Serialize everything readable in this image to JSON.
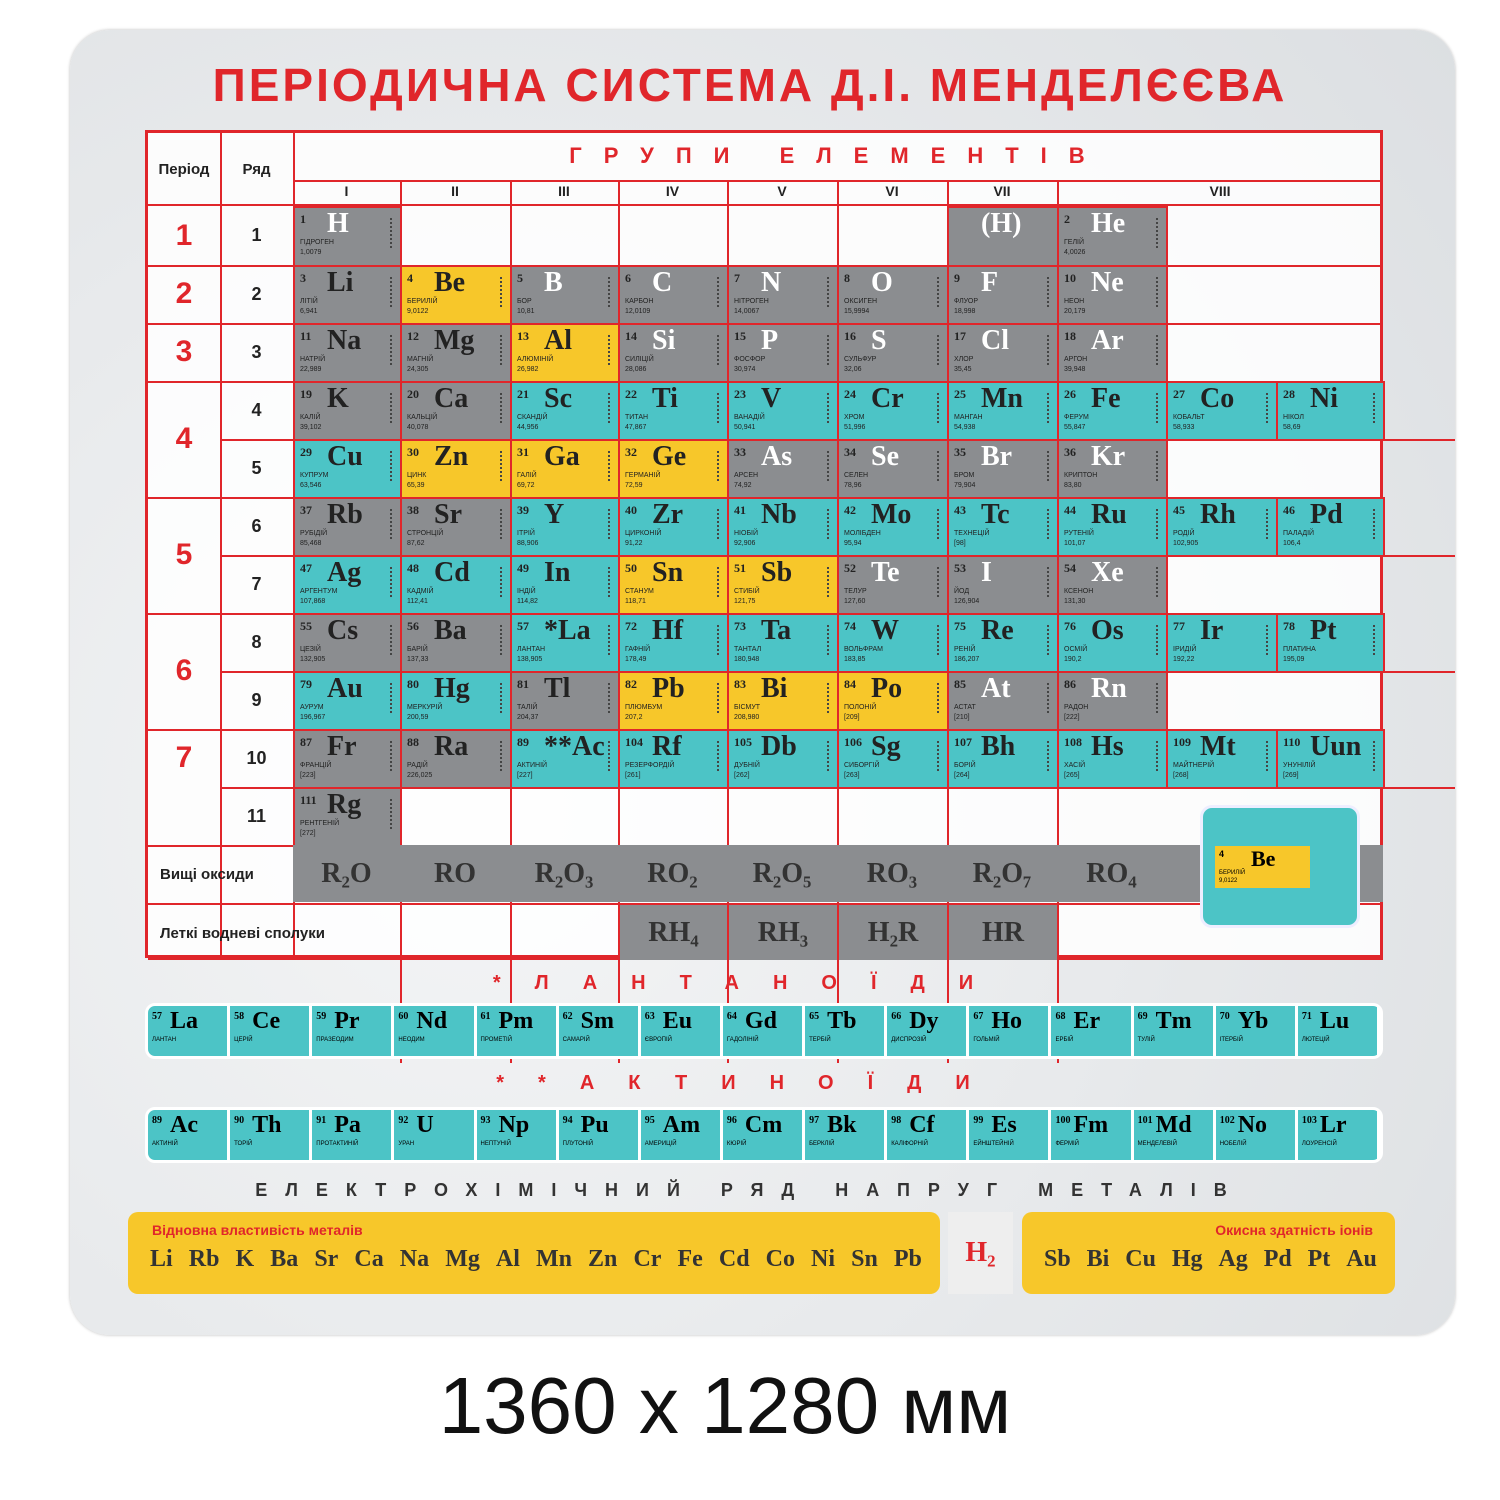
{
  "title": "ПЕРІОДИЧНА  СИСТЕМА  Д.І. МЕНДЕЛЄЄВА",
  "headers": {
    "period": "Період",
    "row": "Ряд",
    "groups_title": "ГРУПИ ЕЛЕМЕНТІВ",
    "groups": [
      "I",
      "II",
      "III",
      "IV",
      "V",
      "VI",
      "VII",
      "VIII"
    ]
  },
  "periods": [
    "1",
    "2",
    "3",
    "4",
    "5",
    "6",
    "7"
  ],
  "rows": [
    "1",
    "2",
    "3",
    "4",
    "5",
    "6",
    "7",
    "8",
    "9",
    "10",
    "11"
  ],
  "colors": {
    "gray": "#8b8d90",
    "yellow": "#f7c72a",
    "teal": "#4cc4c6",
    "red": "#e0262b"
  },
  "elements": [
    [
      {
        "n": "1",
        "s": "H",
        "name": "ГІДРОГЕН",
        "mass": "1,0079",
        "col": 0,
        "c": "gray",
        "light": true
      },
      {
        "n": "",
        "s": "(H)",
        "name": "",
        "mass": "",
        "col": 6,
        "c": "gray",
        "light": true
      },
      {
        "n": "2",
        "s": "He",
        "name": "ГЕЛІЙ",
        "mass": "4,0026",
        "col": 7,
        "c": "gray",
        "light": true
      }
    ],
    [
      {
        "n": "3",
        "s": "Li",
        "name": "ЛІТІЙ",
        "mass": "6,941",
        "col": 0,
        "c": "gray"
      },
      {
        "n": "4",
        "s": "Be",
        "name": "БЕРИЛІЙ",
        "mass": "9,0122",
        "col": 1,
        "c": "yellow"
      },
      {
        "n": "5",
        "s": "B",
        "name": "БОР",
        "mass": "10,81",
        "col": 2,
        "c": "gray",
        "light": true
      },
      {
        "n": "6",
        "s": "C",
        "name": "КАРБОН",
        "mass": "12,0109",
        "col": 3,
        "c": "gray",
        "light": true
      },
      {
        "n": "7",
        "s": "N",
        "name": "НІТРОГЕН",
        "mass": "14,0067",
        "col": 4,
        "c": "gray",
        "light": true
      },
      {
        "n": "8",
        "s": "O",
        "name": "ОКСИГЕН",
        "mass": "15,9994",
        "col": 5,
        "c": "gray",
        "light": true
      },
      {
        "n": "9",
        "s": "F",
        "name": "ФЛУОР",
        "mass": "18,998",
        "col": 6,
        "c": "gray",
        "light": true
      },
      {
        "n": "10",
        "s": "Ne",
        "name": "НЕОН",
        "mass": "20,179",
        "col": 7,
        "c": "gray",
        "light": true
      }
    ],
    [
      {
        "n": "11",
        "s": "Na",
        "name": "НАТРІЙ",
        "mass": "22,989",
        "col": 0,
        "c": "gray"
      },
      {
        "n": "12",
        "s": "Mg",
        "name": "МАГНІЙ",
        "mass": "24,305",
        "col": 1,
        "c": "gray"
      },
      {
        "n": "13",
        "s": "Al",
        "name": "АЛЮМІНІЙ",
        "mass": "26,982",
        "col": 2,
        "c": "yellow"
      },
      {
        "n": "14",
        "s": "Si",
        "name": "СИЛІЦІЙ",
        "mass": "28,086",
        "col": 3,
        "c": "gray",
        "light": true
      },
      {
        "n": "15",
        "s": "P",
        "name": "ФОСФОР",
        "mass": "30,974",
        "col": 4,
        "c": "gray",
        "light": true
      },
      {
        "n": "16",
        "s": "S",
        "name": "СУЛЬФУР",
        "mass": "32,06",
        "col": 5,
        "c": "gray",
        "light": true
      },
      {
        "n": "17",
        "s": "Cl",
        "name": "ХЛОР",
        "mass": "35,45",
        "col": 6,
        "c": "gray",
        "light": true
      },
      {
        "n": "18",
        "s": "Ar",
        "name": "АРГОН",
        "mass": "39,948",
        "col": 7,
        "c": "gray",
        "light": true
      }
    ],
    [
      {
        "n": "19",
        "s": "K",
        "name": "КАЛІЙ",
        "mass": "39,102",
        "col": 0,
        "c": "gray"
      },
      {
        "n": "20",
        "s": "Ca",
        "name": "КАЛЬЦІЙ",
        "mass": "40,078",
        "col": 1,
        "c": "gray"
      },
      {
        "n": "21",
        "s": "Sc",
        "name": "СКАНДІЙ",
        "mass": "44,956",
        "col": 2,
        "c": "teal"
      },
      {
        "n": "22",
        "s": "Ti",
        "name": "ТИТАН",
        "mass": "47,867",
        "col": 3,
        "c": "teal"
      },
      {
        "n": "23",
        "s": "V",
        "name": "ВАНАДІЙ",
        "mass": "50,941",
        "col": 4,
        "c": "teal"
      },
      {
        "n": "24",
        "s": "Cr",
        "name": "ХРОМ",
        "mass": "51,996",
        "col": 5,
        "c": "teal"
      },
      {
        "n": "25",
        "s": "Mn",
        "name": "МАНГАН",
        "mass": "54,938",
        "col": 6,
        "c": "teal"
      },
      {
        "n": "26",
        "s": "Fe",
        "name": "ФЕРУМ",
        "mass": "55,847",
        "col": 7,
        "c": "teal"
      },
      {
        "n": "27",
        "s": "Co",
        "name": "КОБАЛЬТ",
        "mass": "58,933",
        "col": 8,
        "c": "teal"
      },
      {
        "n": "28",
        "s": "Ni",
        "name": "НІКОЛ",
        "mass": "58,69",
        "col": 9,
        "c": "teal"
      }
    ],
    [
      {
        "n": "29",
        "s": "Cu",
        "name": "КУПРУМ",
        "mass": "63,546",
        "col": 0,
        "c": "teal"
      },
      {
        "n": "30",
        "s": "Zn",
        "name": "ЦИНК",
        "mass": "65,39",
        "col": 1,
        "c": "yellow"
      },
      {
        "n": "31",
        "s": "Ga",
        "name": "ГАЛІЙ",
        "mass": "69,72",
        "col": 2,
        "c": "yellow"
      },
      {
        "n": "32",
        "s": "Ge",
        "name": "ГЕРМАНІЙ",
        "mass": "72,59",
        "col": 3,
        "c": "yellow"
      },
      {
        "n": "33",
        "s": "As",
        "name": "АРСЕН",
        "mass": "74,92",
        "col": 4,
        "c": "gray",
        "light": true
      },
      {
        "n": "34",
        "s": "Se",
        "name": "СЕЛЕН",
        "mass": "78,96",
        "col": 5,
        "c": "gray",
        "light": true
      },
      {
        "n": "35",
        "s": "Br",
        "name": "БРОМ",
        "mass": "79,904",
        "col": 6,
        "c": "gray",
        "light": true
      },
      {
        "n": "36",
        "s": "Kr",
        "name": "КРИПТОН",
        "mass": "83,80",
        "col": 7,
        "c": "gray",
        "light": true
      }
    ],
    [
      {
        "n": "37",
        "s": "Rb",
        "name": "РУБІДІЙ",
        "mass": "85,468",
        "col": 0,
        "c": "gray"
      },
      {
        "n": "38",
        "s": "Sr",
        "name": "СТРОНЦІЙ",
        "mass": "87,62",
        "col": 1,
        "c": "gray"
      },
      {
        "n": "39",
        "s": "Y",
        "name": "ІТРІЙ",
        "mass": "88,906",
        "col": 2,
        "c": "teal"
      },
      {
        "n": "40",
        "s": "Zr",
        "name": "ЦИРКОНІЙ",
        "mass": "91,22",
        "col": 3,
        "c": "teal"
      },
      {
        "n": "41",
        "s": "Nb",
        "name": "НІОБІЙ",
        "mass": "92,906",
        "col": 4,
        "c": "teal"
      },
      {
        "n": "42",
        "s": "Mo",
        "name": "МОЛІБДЕН",
        "mass": "95,94",
        "col": 5,
        "c": "teal"
      },
      {
        "n": "43",
        "s": "Tc",
        "name": "ТЕХНЕЦІЙ",
        "mass": "[98]",
        "col": 6,
        "c": "teal"
      },
      {
        "n": "44",
        "s": "Ru",
        "name": "РУТЕНІЙ",
        "mass": "101,07",
        "col": 7,
        "c": "teal"
      },
      {
        "n": "45",
        "s": "Rh",
        "name": "РОДІЙ",
        "mass": "102,905",
        "col": 8,
        "c": "teal"
      },
      {
        "n": "46",
        "s": "Pd",
        "name": "ПАЛАДІЙ",
        "mass": "106,4",
        "col": 9,
        "c": "teal"
      }
    ],
    [
      {
        "n": "47",
        "s": "Ag",
        "name": "АРГЕНТУМ",
        "mass": "107,868",
        "col": 0,
        "c": "teal"
      },
      {
        "n": "48",
        "s": "Cd",
        "name": "КАДМІЙ",
        "mass": "112,41",
        "col": 1,
        "c": "teal"
      },
      {
        "n": "49",
        "s": "In",
        "name": "ІНДІЙ",
        "mass": "114,82",
        "col": 2,
        "c": "teal"
      },
      {
        "n": "50",
        "s": "Sn",
        "name": "СТАНУМ",
        "mass": "118,71",
        "col": 3,
        "c": "yellow"
      },
      {
        "n": "51",
        "s": "Sb",
        "name": "СТИБІЙ",
        "mass": "121,75",
        "col": 4,
        "c": "yellow"
      },
      {
        "n": "52",
        "s": "Te",
        "name": "ТЕЛУР",
        "mass": "127,60",
        "col": 5,
        "c": "gray",
        "light": true
      },
      {
        "n": "53",
        "s": "I",
        "name": "ЙОД",
        "mass": "126,904",
        "col": 6,
        "c": "gray",
        "light": true
      },
      {
        "n": "54",
        "s": "Xe",
        "name": "КСЕНОН",
        "mass": "131,30",
        "col": 7,
        "c": "gray",
        "light": true
      }
    ],
    [
      {
        "n": "55",
        "s": "Cs",
        "name": "ЦЕЗІЙ",
        "mass": "132,905",
        "col": 0,
        "c": "gray"
      },
      {
        "n": "56",
        "s": "Ba",
        "name": "БАРІЙ",
        "mass": "137,33",
        "col": 1,
        "c": "gray"
      },
      {
        "n": "57",
        "s": "*La",
        "name": "ЛАНТАН",
        "mass": "138,905",
        "col": 2,
        "c": "teal"
      },
      {
        "n": "72",
        "s": "Hf",
        "name": "ГАФНІЙ",
        "mass": "178,49",
        "col": 3,
        "c": "teal"
      },
      {
        "n": "73",
        "s": "Ta",
        "name": "ТАНТАЛ",
        "mass": "180,948",
        "col": 4,
        "c": "teal"
      },
      {
        "n": "74",
        "s": "W",
        "name": "ВОЛЬФРАМ",
        "mass": "183,85",
        "col": 5,
        "c": "teal"
      },
      {
        "n": "75",
        "s": "Re",
        "name": "РЕНІЙ",
        "mass": "186,207",
        "col": 6,
        "c": "teal"
      },
      {
        "n": "76",
        "s": "Os",
        "name": "ОСМІЙ",
        "mass": "190,2",
        "col": 7,
        "c": "teal"
      },
      {
        "n": "77",
        "s": "Ir",
        "name": "ІРИДІЙ",
        "mass": "192,22",
        "col": 8,
        "c": "teal"
      },
      {
        "n": "78",
        "s": "Pt",
        "name": "ПЛАТИНА",
        "mass": "195,09",
        "col": 9,
        "c": "teal"
      }
    ],
    [
      {
        "n": "79",
        "s": "Au",
        "name": "АУРУМ",
        "mass": "196,967",
        "col": 0,
        "c": "teal"
      },
      {
        "n": "80",
        "s": "Hg",
        "name": "МЕРКУРІЙ",
        "mass": "200,59",
        "col": 1,
        "c": "teal"
      },
      {
        "n": "81",
        "s": "Tl",
        "name": "ТАЛІЙ",
        "mass": "204,37",
        "col": 2,
        "c": "gray"
      },
      {
        "n": "82",
        "s": "Pb",
        "name": "ПЛЮМБУМ",
        "mass": "207,2",
        "col": 3,
        "c": "yellow"
      },
      {
        "n": "83",
        "s": "Bi",
        "name": "БІСМУТ",
        "mass": "208,980",
        "col": 4,
        "c": "yellow"
      },
      {
        "n": "84",
        "s": "Po",
        "name": "ПОЛОНІЙ",
        "mass": "[209]",
        "col": 5,
        "c": "yellow"
      },
      {
        "n": "85",
        "s": "At",
        "name": "АСТАТ",
        "mass": "[210]",
        "col": 6,
        "c": "gray",
        "light": true
      },
      {
        "n": "86",
        "s": "Rn",
        "name": "РАДОН",
        "mass": "[222]",
        "col": 7,
        "c": "gray",
        "light": true
      }
    ],
    [
      {
        "n": "87",
        "s": "Fr",
        "name": "ФРАНЦІЙ",
        "mass": "[223]",
        "col": 0,
        "c": "gray"
      },
      {
        "n": "88",
        "s": "Ra",
        "name": "РАДІЙ",
        "mass": "226,025",
        "col": 1,
        "c": "gray"
      },
      {
        "n": "89",
        "s": "**Ac",
        "name": "АКТИНІЙ",
        "mass": "[227]",
        "col": 2,
        "c": "teal"
      },
      {
        "n": "104",
        "s": "Rf",
        "name": "РЕЗЕРФОРДІЙ",
        "mass": "[261]",
        "col": 3,
        "c": "teal"
      },
      {
        "n": "105",
        "s": "Db",
        "name": "ДУБНІЙ",
        "mass": "[262]",
        "col": 4,
        "c": "teal"
      },
      {
        "n": "106",
        "s": "Sg",
        "name": "СИБОРГІЙ",
        "mass": "[263]",
        "col": 5,
        "c": "teal"
      },
      {
        "n": "107",
        "s": "Bh",
        "name": "БОРІЙ",
        "mass": "[264]",
        "col": 6,
        "c": "teal"
      },
      {
        "n": "108",
        "s": "Hs",
        "name": "ХАСІЙ",
        "mass": "[265]",
        "col": 7,
        "c": "teal"
      },
      {
        "n": "109",
        "s": "Mt",
        "name": "МАЙТНЕРІЙ",
        "mass": "[268]",
        "col": 8,
        "c": "teal"
      },
      {
        "n": "110",
        "s": "Uun",
        "name": "УНУНІЛІЙ",
        "mass": "[269]",
        "col": 9,
        "c": "teal"
      }
    ],
    [
      {
        "n": "111",
        "s": "Rg",
        "name": "РЕНТГЕНІЙ",
        "mass": "[272]",
        "col": 0,
        "c": "gray"
      }
    ]
  ],
  "oxides": {
    "label": "Вищі оксиди",
    "items": [
      "R₂O",
      "RO",
      "R₂O₃",
      "RO₂",
      "R₂O₅",
      "RO₃",
      "R₂O₇",
      "RO₄"
    ]
  },
  "hydrides": {
    "label": "Леткі водневі сполуки",
    "items": [
      "",
      "",
      "",
      "RH₄",
      "RH₃",
      "H₂R",
      "HR",
      ""
    ]
  },
  "legend": {
    "n": "4",
    "s": "Be",
    "name": "БЕРИЛІЙ",
    "mass": "9,0122"
  },
  "lanthanides": {
    "title": "*ЛАНТАНОЇДИ",
    "items": [
      [
        "57",
        "La",
        "ЛАНТАН"
      ],
      [
        "58",
        "Ce",
        "ЦЕРІЙ"
      ],
      [
        "59",
        "Pr",
        "ПРАЗЕОДИМ"
      ],
      [
        "60",
        "Nd",
        "НЕОДИМ"
      ],
      [
        "61",
        "Pm",
        "ПРОМЕТІЙ"
      ],
      [
        "62",
        "Sm",
        "САМАРІЙ"
      ],
      [
        "63",
        "Eu",
        "ЄВРОПІЙ"
      ],
      [
        "64",
        "Gd",
        "ГАДОЛІНІЙ"
      ],
      [
        "65",
        "Tb",
        "ТЕРБІЙ"
      ],
      [
        "66",
        "Dy",
        "ДИСПРОЗІЙ"
      ],
      [
        "67",
        "Ho",
        "ГОЛЬМІЙ"
      ],
      [
        "68",
        "Er",
        "ЕРБІЙ"
      ],
      [
        "69",
        "Tm",
        "ТУЛІЙ"
      ],
      [
        "70",
        "Yb",
        "ІТЕРБІЙ"
      ],
      [
        "71",
        "Lu",
        "ЛЮТЕЦІЙ"
      ]
    ]
  },
  "actinides": {
    "title": "**АКТИНОЇДИ",
    "items": [
      [
        "89",
        "Ac",
        "АКТИНІЙ"
      ],
      [
        "90",
        "Th",
        "ТОРІЙ"
      ],
      [
        "91",
        "Pa",
        "ПРОТАКТИНІЙ"
      ],
      [
        "92",
        "U",
        "УРАН"
      ],
      [
        "93",
        "Np",
        "НЕПТУНІЙ"
      ],
      [
        "94",
        "Pu",
        "ПЛУТОНІЙ"
      ],
      [
        "95",
        "Am",
        "АМЕРИЦІЙ"
      ],
      [
        "96",
        "Cm",
        "КЮРІЙ"
      ],
      [
        "97",
        "Bk",
        "БЕРКЛІЙ"
      ],
      [
        "98",
        "Cf",
        "КАЛІФОРНІЙ"
      ],
      [
        "99",
        "Es",
        "ЕЙНШТЕЙНІЙ"
      ],
      [
        "100",
        "Fm",
        "ФЕРМІЙ"
      ],
      [
        "101",
        "Md",
        "МЕНДЕЛЕВІЙ"
      ],
      [
        "102",
        "No",
        "НОБЕЛІЙ"
      ],
      [
        "103",
        "Lr",
        "ЛОУРЕНСІЙ"
      ]
    ]
  },
  "electrochem": {
    "title": "ЕЛЕКТРОХІМІЧНИЙ РЯД НАПРУГ МЕТАЛІВ",
    "left_label": "Відновна властивість металів",
    "left": [
      "Li",
      "Rb",
      "K",
      "Ba",
      "Sr",
      "Ca",
      "Na",
      "Mg",
      "Al",
      "Mn",
      "Zn",
      "Cr",
      "Fe",
      "Cd",
      "Co",
      "Ni",
      "Sn",
      "Pb"
    ],
    "h2": "H₂",
    "right_label": "Окисна здатність іонів",
    "right": [
      "Sb",
      "Bi",
      "Cu",
      "Hg",
      "Ag",
      "Pd",
      "Pt",
      "Au"
    ]
  },
  "caption": "1360 x 1280 мм"
}
